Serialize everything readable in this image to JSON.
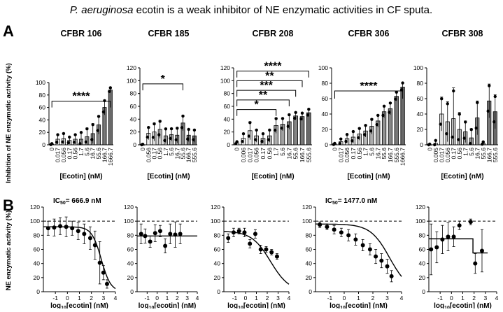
{
  "figure": {
    "title_italic": "P. aeruginosa",
    "title_rest": " ecotin is a weak inhibitor of NE enzymatic activities in CF sputa.",
    "panel_a": "A",
    "panel_b": "B",
    "ylabel_a": "Inhibition of NE enzymatic activity (%)",
    "ylabel_b": "NE enzymatic activity (%)",
    "xlabel_a": "[Ecotin] (nM)",
    "xlabel_b": "log10[ecotin] (nM)",
    "xlabel_b_pre": "log",
    "xlabel_b_sub": "10",
    "xlabel_b_post": "[ecotin] (nM)"
  },
  "chart_data": [
    {
      "type": "bar",
      "title": "CFBR 106",
      "categories": [
        "0",
        "0.017",
        "0.056",
        "0.17",
        "0.56",
        "1.7",
        "5.6",
        "16.7",
        "55.6",
        "166.7",
        "1666.7"
      ],
      "values": [
        1,
        9,
        10,
        7,
        9,
        9,
        13,
        18,
        32,
        60,
        88
      ],
      "errors": [
        1,
        8,
        9,
        6,
        8,
        12,
        14,
        16,
        15,
        12,
        4
      ],
      "ylim": [
        0,
        100
      ],
      "yticks": [
        0,
        20,
        40,
        60,
        80,
        100
      ],
      "bracket": {
        "from": 0,
        "to": 10,
        "y": 70,
        "label": "****"
      }
    },
    {
      "type": "bar",
      "title": "CFBR 185",
      "categories": [
        "0",
        "0.056",
        "0.17",
        "0.56",
        "1.7",
        "5.6",
        "16.7",
        "55.6",
        "166.7",
        "555.6"
      ],
      "values": [
        0,
        18,
        20,
        24,
        14,
        16,
        15,
        34,
        15,
        14
      ],
      "errors": [
        1,
        10,
        14,
        14,
        12,
        10,
        12,
        12,
        10,
        10
      ],
      "ylim": [
        0,
        120
      ],
      "yticks": [
        0,
        20,
        40,
        60,
        80,
        100,
        120
      ],
      "bracket": {
        "from": 0,
        "to": 7,
        "y": 95,
        "label": "*"
      }
    },
    {
      "type": "bar",
      "title": "CFBR 208",
      "categories": [
        "0",
        "0.006",
        "0.017",
        "0.056",
        "0.17",
        "0.56",
        "1.7",
        "5.6",
        "16.7",
        "55.6",
        "166.7",
        "555.6"
      ],
      "values": [
        3,
        10,
        22,
        14,
        10,
        14,
        30,
        32,
        36,
        45,
        44,
        50
      ],
      "errors": [
        2,
        8,
        14,
        10,
        8,
        10,
        12,
        10,
        12,
        6,
        6,
        6
      ],
      "ylim": [
        0,
        120
      ],
      "yticks": [
        0,
        20,
        40,
        60,
        80,
        100,
        120
      ],
      "brackets": [
        {
          "from": 0,
          "to": 11,
          "y": 115,
          "label": "****"
        },
        {
          "from": 0,
          "to": 10,
          "y": 100,
          "label": "**"
        },
        {
          "from": 0,
          "to": 9,
          "y": 85,
          "label": "***"
        },
        {
          "from": 0,
          "to": 8,
          "y": 70,
          "label": "**"
        },
        {
          "from": 0,
          "to": 6,
          "y": 55,
          "label": "*"
        }
      ]
    },
    {
      "type": "bar",
      "title": "CFBR 306",
      "categories": [
        "0",
        "0.017",
        "0.056",
        "0.17",
        "0.56",
        "1.7",
        "5.6",
        "16.7",
        "55.6",
        "166.7",
        "555.6",
        "1666.7"
      ],
      "values": [
        1,
        4,
        8,
        10,
        14,
        18,
        24,
        31,
        43,
        47,
        63,
        75
      ],
      "errors": [
        1,
        4,
        6,
        8,
        8,
        8,
        10,
        8,
        8,
        8,
        6,
        6
      ],
      "ylim": [
        0,
        100
      ],
      "yticks": [
        0,
        20,
        40,
        60,
        80,
        100
      ],
      "bracket": {
        "from": 0,
        "to": 11,
        "y": 70,
        "label": "****"
      }
    },
    {
      "type": "bar",
      "title": "CFBR 308",
      "categories": [
        "0",
        "0.005",
        "0.017",
        "0.056",
        "0.17",
        "0.56",
        "1.7",
        "5.6",
        "16.7",
        "55.6",
        "166.7",
        "555.6"
      ],
      "values": [
        0,
        2,
        40,
        30,
        34,
        20,
        17,
        9,
        35,
        2,
        57,
        43
      ],
      "errors": [
        1,
        4,
        22,
        26,
        40,
        22,
        14,
        12,
        22,
        2,
        22,
        22
      ],
      "ylim": [
        0,
        100
      ],
      "yticks": [
        0,
        20,
        40,
        60,
        80,
        100
      ]
    },
    {
      "type": "line",
      "annotation": "666.9 nM",
      "x": [
        -1.6,
        -1.1,
        -0.6,
        -0.1,
        0.4,
        0.9,
        1.4,
        1.9,
        2.3,
        2.7,
        3.0,
        3.3
      ],
      "y": [
        90,
        91,
        93,
        92,
        90,
        86,
        82,
        76,
        66,
        41,
        27,
        11
      ],
      "err": [
        10,
        12,
        12,
        14,
        10,
        12,
        14,
        16,
        20,
        30,
        10,
        6
      ],
      "fit": "ic50",
      "ic50": 2.82,
      "top": 92,
      "hill": 1.1,
      "xlim": [
        -2,
        4
      ],
      "xticks": [
        -1,
        0,
        1,
        2,
        3,
        4
      ],
      "ylim": [
        0,
        120
      ],
      "yticks": [
        0,
        20,
        40,
        60,
        80,
        100,
        120
      ],
      "dashed": 100
    },
    {
      "type": "line",
      "x": [
        -1.6,
        -1.2,
        -0.7,
        -0.2,
        0.3,
        0.8,
        1.3,
        1.8,
        2.3
      ],
      "y": [
        82,
        79,
        71,
        83,
        86,
        65,
        82,
        81,
        82
      ],
      "err": [
        14,
        10,
        8,
        12,
        8,
        10,
        14,
        18,
        14
      ],
      "fit": "flat",
      "xlim": [
        -2,
        4
      ],
      "xticks": [
        -1,
        0,
        1,
        2,
        3,
        4
      ],
      "ylim": [
        0,
        120
      ],
      "yticks": [
        0,
        20,
        40,
        60,
        80,
        100,
        120
      ],
      "dashed": 100
    },
    {
      "type": "line",
      "x": [
        -1.6,
        -1.1,
        -0.6,
        -0.1,
        0.4,
        0.9,
        1.4,
        1.9,
        2.4,
        2.9
      ],
      "y": [
        76,
        84,
        86,
        84,
        68,
        82,
        60,
        60,
        56,
        50
      ],
      "err": [
        6,
        6,
        4,
        6,
        6,
        6,
        6,
        4,
        4,
        4
      ],
      "fit": "ic50",
      "ic50": 2.3,
      "top": 86,
      "hill": 0.5,
      "xlim": [
        -2,
        4
      ],
      "xticks": [
        -1,
        0,
        1,
        2,
        3,
        4
      ],
      "ylim": [
        0,
        120
      ],
      "yticks": [
        0,
        20,
        40,
        60,
        80,
        100,
        120
      ],
      "dashed": 100
    },
    {
      "type": "line",
      "annotation": "1477.0 nM",
      "x": [
        -1.7,
        -1.2,
        -0.7,
        -0.2,
        0.3,
        0.8,
        1.3,
        1.8,
        2.2,
        2.6,
        3.0,
        3.3
      ],
      "y": [
        95,
        92,
        88,
        84,
        80,
        74,
        66,
        60,
        50,
        44,
        36,
        22
      ],
      "err": [
        4,
        4,
        6,
        6,
        8,
        8,
        8,
        8,
        10,
        10,
        10,
        8
      ],
      "fit": "ic50",
      "ic50": 3.17,
      "top": 96,
      "hill": 0.65,
      "xlim": [
        -2,
        4
      ],
      "xticks": [
        -1,
        0,
        1,
        2,
        3,
        4
      ],
      "ylim": [
        0,
        120
      ],
      "yticks": [
        0,
        20,
        40,
        60,
        80,
        100,
        120
      ],
      "dashed": 100
    },
    {
      "type": "line",
      "x": [
        -1.8,
        -1.3,
        -0.8,
        -0.3,
        0.2,
        0.7,
        1.7,
        2.1,
        2.7
      ],
      "y": [
        60,
        63,
        74,
        78,
        78,
        94,
        99,
        40,
        58
      ],
      "err": [
        36,
        22,
        20,
        20,
        14,
        6,
        4,
        14,
        30
      ],
      "fit": "step",
      "xlim": [
        -2,
        4
      ],
      "xticks": [
        -1,
        0,
        1,
        2,
        3,
        4
      ],
      "ylim": [
        0,
        120
      ],
      "yticks": [
        0,
        20,
        40,
        60,
        80,
        100,
        120
      ],
      "dashed": 100
    }
  ]
}
